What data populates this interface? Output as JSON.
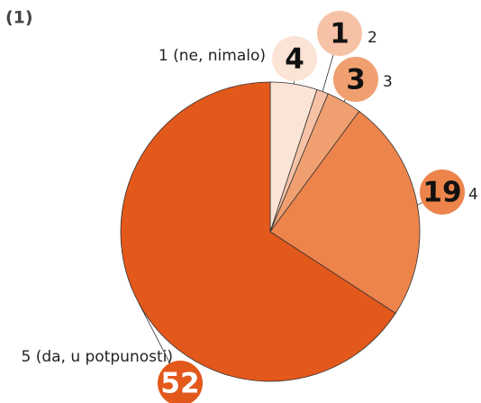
{
  "chart_data": {
    "type": "pie",
    "title": "(1)",
    "categories": [
      "1 (ne, nimalo)",
      "2",
      "3",
      "4",
      "5 (da, u potpunosti)"
    ],
    "values": [
      4,
      1,
      3,
      19,
      52
    ],
    "colors": [
      "#fbe3d6",
      "#f6c2a6",
      "#f0a070",
      "#ec844c",
      "#e3581b"
    ]
  }
}
